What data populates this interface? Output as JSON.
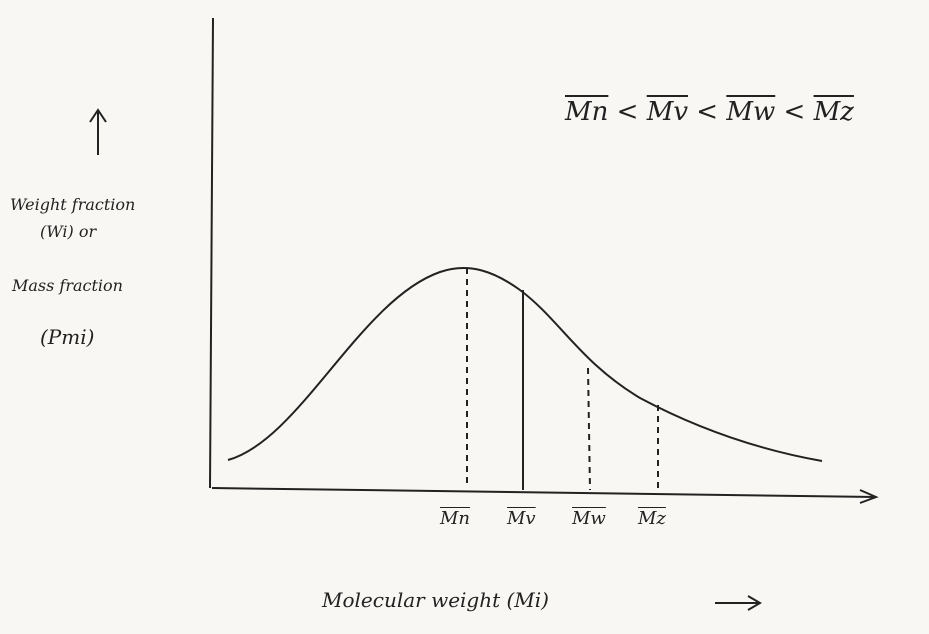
{
  "inequality": {
    "terms": [
      "Mn",
      "Mv",
      "Mw",
      "Mz"
    ],
    "relations": [
      "<",
      "<",
      "<"
    ]
  },
  "y_label": {
    "lines": [
      "Weight fraction",
      "(Wi) or",
      "Mass fraction",
      "(Pmi)"
    ]
  },
  "markers": [
    "Mn",
    "Mv",
    "Mw",
    "Mz"
  ],
  "x_label": "Molecular weight (Mi)"
}
